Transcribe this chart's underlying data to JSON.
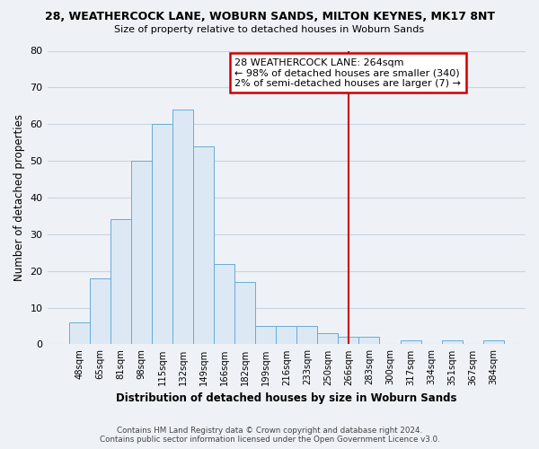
{
  "title": "28, WEATHERCOCK LANE, WOBURN SANDS, MILTON KEYNES, MK17 8NT",
  "subtitle": "Size of property relative to detached houses in Woburn Sands",
  "xlabel": "Distribution of detached houses by size in Woburn Sands",
  "ylabel": "Number of detached properties",
  "bar_color": "#dce9f5",
  "bar_edge_color": "#6aaad4",
  "background_color": "#eef2f7",
  "grid_color": "#c8d4e0",
  "categories": [
    "48sqm",
    "65sqm",
    "81sqm",
    "98sqm",
    "115sqm",
    "132sqm",
    "149sqm",
    "166sqm",
    "182sqm",
    "199sqm",
    "216sqm",
    "233sqm",
    "250sqm",
    "266sqm",
    "283sqm",
    "300sqm",
    "317sqm",
    "334sqm",
    "351sqm",
    "367sqm",
    "384sqm"
  ],
  "values": [
    6,
    18,
    34,
    50,
    60,
    64,
    54,
    22,
    17,
    5,
    5,
    5,
    3,
    2,
    2,
    0,
    1,
    0,
    1,
    0,
    1
  ],
  "vline_x_index": 13,
  "vline_color": "#cc0000",
  "annotation_title": "28 WEATHERCOCK LANE: 264sqm",
  "annotation_line1": "← 98% of detached houses are smaller (340)",
  "annotation_line2": "2% of semi-detached houses are larger (7) →",
  "annotation_box_color": "white",
  "annotation_edge_color": "#cc0000",
  "footer_line1": "Contains HM Land Registry data © Crown copyright and database right 2024.",
  "footer_line2": "Contains public sector information licensed under the Open Government Licence v3.0.",
  "ylim": [
    0,
    80
  ],
  "yticks": [
    0,
    10,
    20,
    30,
    40,
    50,
    60,
    70,
    80
  ]
}
